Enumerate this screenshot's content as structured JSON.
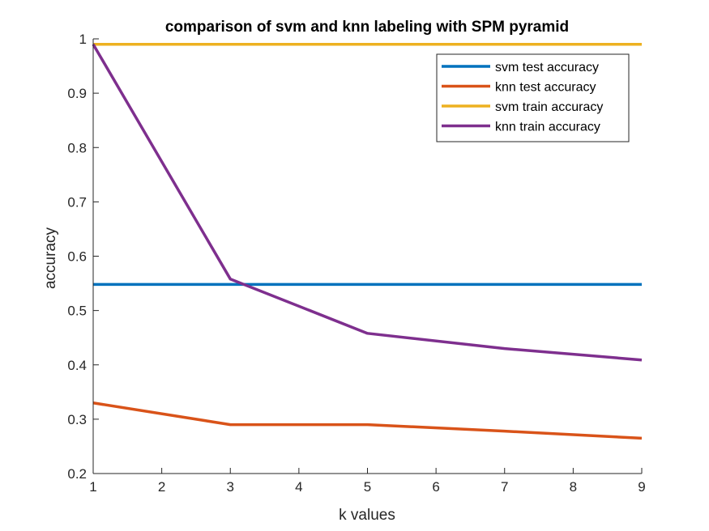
{
  "chart_data": {
    "type": "line",
    "title": "comparison of svm and knn labeling with SPM pyramid",
    "xlabel": "k values",
    "ylabel": "accuracy",
    "xlim": [
      1,
      9
    ],
    "ylim": [
      0.2,
      1
    ],
    "xticks": [
      1,
      2,
      3,
      4,
      5,
      6,
      7,
      8,
      9
    ],
    "xtick_labels": [
      "1",
      "2",
      "3",
      "4",
      "5",
      "6",
      "7",
      "8",
      "9"
    ],
    "yticks": [
      0.2,
      0.3,
      0.4,
      0.5,
      0.6,
      0.7,
      0.8,
      0.9,
      1
    ],
    "ytick_labels": [
      "0.2",
      "0.3",
      "0.4",
      "0.5",
      "0.6",
      "0.7",
      "0.8",
      "0.9",
      "1"
    ],
    "grid": false,
    "legend_position": "top-right",
    "x": [
      1,
      3,
      5,
      7,
      9
    ],
    "series": [
      {
        "name": "svm test accuracy",
        "color": "#0072BD",
        "values": [
          0.548,
          0.548,
          0.548,
          0.548,
          0.548
        ]
      },
      {
        "name": "knn test accuracy",
        "color": "#D95319",
        "values": [
          0.33,
          0.29,
          0.29,
          0.278,
          0.265
        ]
      },
      {
        "name": "svm train accuracy",
        "color": "#EDB120",
        "values": [
          0.99,
          0.99,
          0.99,
          0.99,
          0.99
        ]
      },
      {
        "name": "knn train accuracy",
        "color": "#7E2F8E",
        "values": [
          0.99,
          0.558,
          0.458,
          0.43,
          0.409
        ]
      }
    ]
  }
}
